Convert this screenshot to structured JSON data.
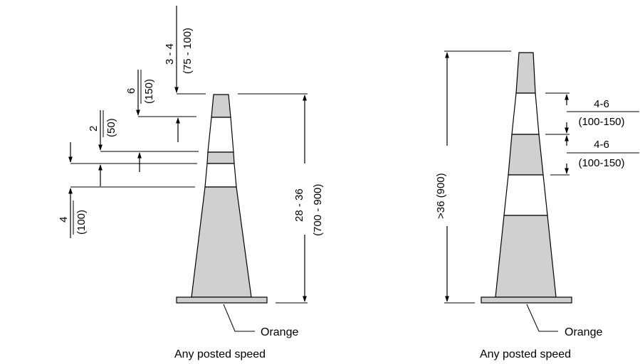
{
  "colors": {
    "orange_band": "#d0d0d0",
    "white_band": "#ffffff",
    "outline": "#000000"
  },
  "left_cone": {
    "label_top": "3 - 4",
    "label_top_metric": "(75 - 100)",
    "label_6": "6",
    "label_6_metric": "(150)",
    "label_2": "2",
    "label_2_metric": "(50)",
    "label_4": "4",
    "label_4_metric": "(100)",
    "height": "28 - 36",
    "height_metric": "(700 - 900)",
    "base_label": "Orange",
    "caption": "Any posted speed"
  },
  "right_cone": {
    "height": ">36 (900)",
    "band1": "4-6",
    "band1_metric": "(100-150)",
    "band2": "4-6",
    "band2_metric": "(100-150)",
    "base_label": "Orange",
    "caption": "Any posted speed"
  }
}
